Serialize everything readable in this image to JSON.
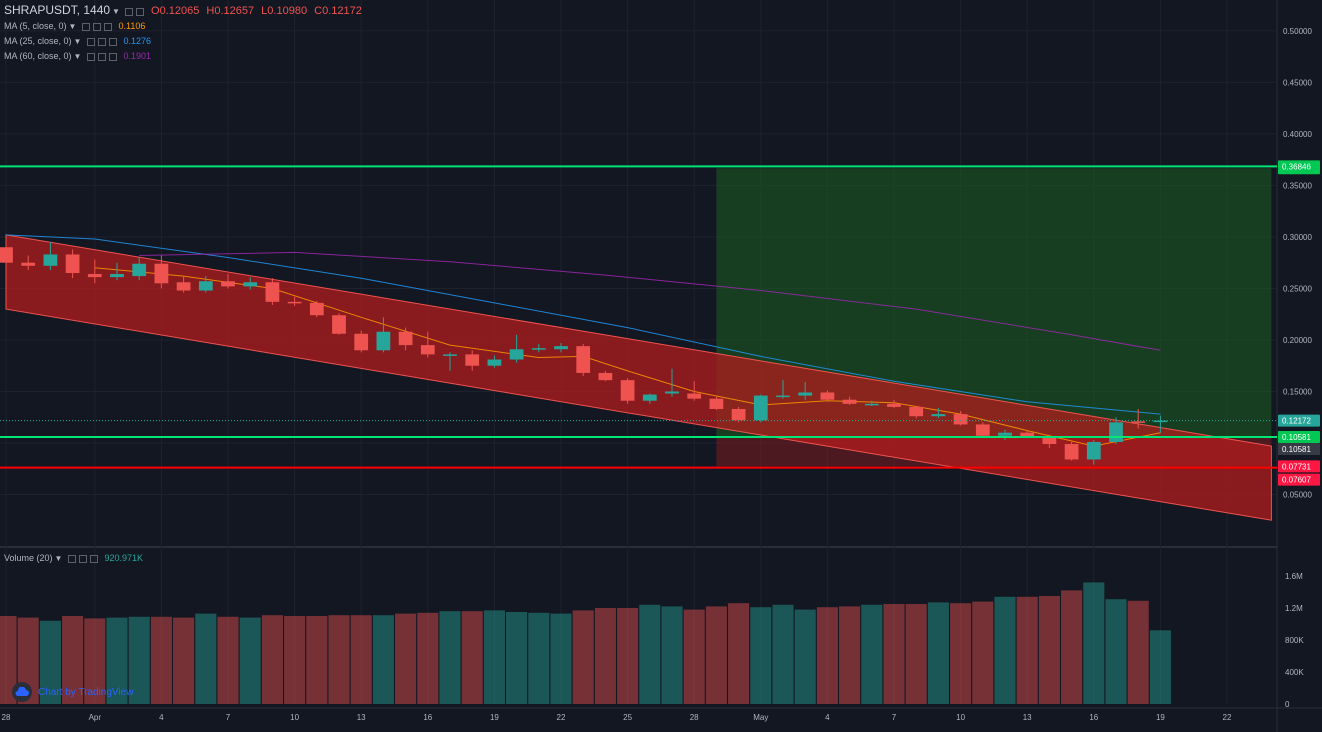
{
  "header": {
    "symbol": "SHRAPUSDT, 1440",
    "ohlc": {
      "o_label": "O",
      "o": "0.12065",
      "h_label": "H",
      "h": "0.12657",
      "l_label": "L",
      "l": "0.10980",
      "c_label": "C",
      "c": "0.12172"
    }
  },
  "indicators": [
    {
      "label": "MA (5, close, 0)",
      "value": "0.1106",
      "color": "#ff9800"
    },
    {
      "label": "MA (25, close, 0)",
      "value": "0.1276",
      "color": "#2196f3"
    },
    {
      "label": "MA (60, close, 0)",
      "value": "0.1901",
      "color": "#9c27b0"
    }
  ],
  "volume_legend": {
    "label": "Volume (20)",
    "value": "920.971K"
  },
  "branding": "Chart by TradingView",
  "colors": {
    "background": "#131722",
    "up": "#26a69a",
    "down": "#ef5350",
    "grid": "#1e222d",
    "text": "#b2b5be"
  },
  "chart_data": {
    "type": "candlestick",
    "price_axis": {
      "min": 0.0,
      "max": 0.53,
      "ticks": [
        0.05,
        0.1,
        0.15,
        0.2,
        0.25,
        0.3,
        0.35,
        0.4,
        0.45,
        0.5
      ],
      "tick_labels": [
        "0.05000",
        "0.10000",
        "0.15000",
        "0.20000",
        "0.25000",
        "0.30000",
        "0.35000",
        "0.40000",
        "0.45000",
        "0.50000"
      ]
    },
    "volume_axis": {
      "min": 0,
      "max": 1700000,
      "ticks": [
        0,
        400000,
        800000,
        1200000,
        1600000
      ],
      "tick_labels": [
        "0",
        "400K",
        "800K",
        "1.2M",
        "1.6M"
      ]
    },
    "time_axis": {
      "start_date": "2021-03-28",
      "end_date": "2021-05-24",
      "ticks": [
        {
          "date": "2021-03-28",
          "label": "28"
        },
        {
          "date": "2021-04-01",
          "label": "Apr"
        },
        {
          "date": "2021-04-04",
          "label": "4"
        },
        {
          "date": "2021-04-07",
          "label": "7"
        },
        {
          "date": "2021-04-10",
          "label": "10"
        },
        {
          "date": "2021-04-13",
          "label": "13"
        },
        {
          "date": "2021-04-16",
          "label": "16"
        },
        {
          "date": "2021-04-19",
          "label": "19"
        },
        {
          "date": "2021-04-22",
          "label": "22"
        },
        {
          "date": "2021-04-25",
          "label": "25"
        },
        {
          "date": "2021-04-28",
          "label": "28"
        },
        {
          "date": "2021-05-01",
          "label": "May"
        },
        {
          "date": "2021-05-04",
          "label": "4"
        },
        {
          "date": "2021-05-07",
          "label": "7"
        },
        {
          "date": "2021-05-10",
          "label": "10"
        },
        {
          "date": "2021-05-13",
          "label": "13"
        },
        {
          "date": "2021-05-16",
          "label": "16"
        },
        {
          "date": "2021-05-19",
          "label": "19"
        },
        {
          "date": "2021-05-22",
          "label": "22"
        }
      ]
    },
    "candles": [
      {
        "date": "2021-03-28",
        "o": 0.29,
        "h": 0.296,
        "l": 0.27,
        "c": 0.275,
        "v": 1100000
      },
      {
        "date": "2021-03-29",
        "o": 0.275,
        "h": 0.282,
        "l": 0.268,
        "c": 0.272,
        "v": 1080000
      },
      {
        "date": "2021-03-30",
        "o": 0.272,
        "h": 0.295,
        "l": 0.268,
        "c": 0.283,
        "v": 1040000
      },
      {
        "date": "2021-03-31",
        "o": 0.283,
        "h": 0.288,
        "l": 0.26,
        "c": 0.265,
        "v": 1100000
      },
      {
        "date": "2021-04-01",
        "o": 0.264,
        "h": 0.278,
        "l": 0.255,
        "c": 0.261,
        "v": 1070000
      },
      {
        "date": "2021-04-02",
        "o": 0.261,
        "h": 0.275,
        "l": 0.258,
        "c": 0.264,
        "v": 1080000
      },
      {
        "date": "2021-04-03",
        "o": 0.262,
        "h": 0.28,
        "l": 0.258,
        "c": 0.274,
        "v": 1090000
      },
      {
        "date": "2021-04-04",
        "o": 0.274,
        "h": 0.282,
        "l": 0.25,
        "c": 0.255,
        "v": 1090000
      },
      {
        "date": "2021-04-05",
        "o": 0.256,
        "h": 0.262,
        "l": 0.246,
        "c": 0.248,
        "v": 1080000
      },
      {
        "date": "2021-04-06",
        "o": 0.248,
        "h": 0.262,
        "l": 0.246,
        "c": 0.257,
        "v": 1130000
      },
      {
        "date": "2021-04-07",
        "o": 0.257,
        "h": 0.264,
        "l": 0.25,
        "c": 0.252,
        "v": 1090000
      },
      {
        "date": "2021-04-08",
        "o": 0.252,
        "h": 0.261,
        "l": 0.249,
        "c": 0.256,
        "v": 1080000
      },
      {
        "date": "2021-04-09",
        "o": 0.256,
        "h": 0.26,
        "l": 0.234,
        "c": 0.237,
        "v": 1110000
      },
      {
        "date": "2021-04-10",
        "o": 0.237,
        "h": 0.242,
        "l": 0.233,
        "c": 0.236,
        "v": 1100000
      },
      {
        "date": "2021-04-11",
        "o": 0.236,
        "h": 0.238,
        "l": 0.222,
        "c": 0.224,
        "v": 1100000
      },
      {
        "date": "2021-04-12",
        "o": 0.224,
        "h": 0.226,
        "l": 0.205,
        "c": 0.206,
        "v": 1110000
      },
      {
        "date": "2021-04-13",
        "o": 0.206,
        "h": 0.209,
        "l": 0.188,
        "c": 0.19,
        "v": 1110000
      },
      {
        "date": "2021-04-14",
        "o": 0.19,
        "h": 0.222,
        "l": 0.188,
        "c": 0.208,
        "v": 1110000
      },
      {
        "date": "2021-04-15",
        "o": 0.208,
        "h": 0.212,
        "l": 0.19,
        "c": 0.195,
        "v": 1130000
      },
      {
        "date": "2021-04-16",
        "o": 0.195,
        "h": 0.208,
        "l": 0.183,
        "c": 0.186,
        "v": 1140000
      },
      {
        "date": "2021-04-17",
        "o": 0.186,
        "h": 0.188,
        "l": 0.17,
        "c": 0.186,
        "v": 1160000
      },
      {
        "date": "2021-04-18",
        "o": 0.186,
        "h": 0.19,
        "l": 0.17,
        "c": 0.175,
        "v": 1160000
      },
      {
        "date": "2021-04-19",
        "o": 0.175,
        "h": 0.185,
        "l": 0.173,
        "c": 0.181,
        "v": 1170000
      },
      {
        "date": "2021-04-20",
        "o": 0.181,
        "h": 0.205,
        "l": 0.178,
        "c": 0.191,
        "v": 1150000
      },
      {
        "date": "2021-04-21",
        "o": 0.191,
        "h": 0.196,
        "l": 0.188,
        "c": 0.192,
        "v": 1140000
      },
      {
        "date": "2021-04-22",
        "o": 0.191,
        "h": 0.197,
        "l": 0.188,
        "c": 0.194,
        "v": 1130000
      },
      {
        "date": "2021-04-23",
        "o": 0.194,
        "h": 0.196,
        "l": 0.165,
        "c": 0.168,
        "v": 1170000
      },
      {
        "date": "2021-04-24",
        "o": 0.168,
        "h": 0.17,
        "l": 0.16,
        "c": 0.161,
        "v": 1200000
      },
      {
        "date": "2021-04-25",
        "o": 0.161,
        "h": 0.163,
        "l": 0.138,
        "c": 0.141,
        "v": 1200000
      },
      {
        "date": "2021-04-26",
        "o": 0.141,
        "h": 0.148,
        "l": 0.138,
        "c": 0.147,
        "v": 1240000
      },
      {
        "date": "2021-04-27",
        "o": 0.148,
        "h": 0.172,
        "l": 0.145,
        "c": 0.15,
        "v": 1220000
      },
      {
        "date": "2021-04-28",
        "o": 0.148,
        "h": 0.16,
        "l": 0.141,
        "c": 0.143,
        "v": 1180000
      },
      {
        "date": "2021-04-29",
        "o": 0.143,
        "h": 0.145,
        "l": 0.132,
        "c": 0.133,
        "v": 1220000
      },
      {
        "date": "2021-04-30",
        "o": 0.133,
        "h": 0.135,
        "l": 0.12,
        "c": 0.122,
        "v": 1260000
      },
      {
        "date": "2021-05-01",
        "o": 0.122,
        "h": 0.147,
        "l": 0.12,
        "c": 0.146,
        "v": 1210000
      },
      {
        "date": "2021-05-02",
        "o": 0.146,
        "h": 0.161,
        "l": 0.143,
        "c": 0.146,
        "v": 1240000
      },
      {
        "date": "2021-05-03",
        "o": 0.146,
        "h": 0.159,
        "l": 0.142,
        "c": 0.149,
        "v": 1180000
      },
      {
        "date": "2021-05-04",
        "o": 0.149,
        "h": 0.151,
        "l": 0.14,
        "c": 0.142,
        "v": 1210000
      },
      {
        "date": "2021-05-05",
        "o": 0.142,
        "h": 0.145,
        "l": 0.137,
        "c": 0.138,
        "v": 1220000
      },
      {
        "date": "2021-05-06",
        "o": 0.138,
        "h": 0.141,
        "l": 0.136,
        "c": 0.138,
        "v": 1240000
      },
      {
        "date": "2021-05-07",
        "o": 0.138,
        "h": 0.142,
        "l": 0.134,
        "c": 0.135,
        "v": 1250000
      },
      {
        "date": "2021-05-08",
        "o": 0.135,
        "h": 0.136,
        "l": 0.124,
        "c": 0.126,
        "v": 1250000
      },
      {
        "date": "2021-05-09",
        "o": 0.126,
        "h": 0.134,
        "l": 0.124,
        "c": 0.128,
        "v": 1270000
      },
      {
        "date": "2021-05-10",
        "o": 0.128,
        "h": 0.131,
        "l": 0.117,
        "c": 0.118,
        "v": 1260000
      },
      {
        "date": "2021-05-11",
        "o": 0.118,
        "h": 0.12,
        "l": 0.105,
        "c": 0.107,
        "v": 1280000
      },
      {
        "date": "2021-05-12",
        "o": 0.107,
        "h": 0.113,
        "l": 0.103,
        "c": 0.11,
        "v": 1340000
      },
      {
        "date": "2021-05-13",
        "o": 0.11,
        "h": 0.112,
        "l": 0.105,
        "c": 0.106,
        "v": 1340000
      },
      {
        "date": "2021-05-14",
        "o": 0.106,
        "h": 0.108,
        "l": 0.095,
        "c": 0.099,
        "v": 1350000
      },
      {
        "date": "2021-05-15",
        "o": 0.099,
        "h": 0.101,
        "l": 0.083,
        "c": 0.084,
        "v": 1420000
      },
      {
        "date": "2021-05-16",
        "o": 0.084,
        "h": 0.103,
        "l": 0.079,
        "c": 0.101,
        "v": 1520000
      },
      {
        "date": "2021-05-17",
        "o": 0.101,
        "h": 0.125,
        "l": 0.099,
        "c": 0.12,
        "v": 1310000
      },
      {
        "date": "2021-05-18",
        "o": 0.121,
        "h": 0.133,
        "l": 0.114,
        "c": 0.12,
        "v": 1290000
      },
      {
        "date": "2021-05-19",
        "o": 0.12065,
        "h": 0.12657,
        "l": 0.1098,
        "c": 0.12172,
        "v": 920971
      }
    ],
    "ma_lines": [
      {
        "name": "MA (5, close, 0)",
        "color": "#ff9800",
        "points": [
          [
            "2021-04-01",
            0.27
          ],
          [
            "2021-04-05",
            0.262
          ],
          [
            "2021-04-09",
            0.25
          ],
          [
            "2021-04-13",
            0.222
          ],
          [
            "2021-04-17",
            0.195
          ],
          [
            "2021-04-21",
            0.183
          ],
          [
            "2021-04-23",
            0.184
          ],
          [
            "2021-04-25",
            0.17
          ],
          [
            "2021-04-28",
            0.15
          ],
          [
            "2021-05-01",
            0.137
          ],
          [
            "2021-05-04",
            0.141
          ],
          [
            "2021-05-07",
            0.139
          ],
          [
            "2021-05-10",
            0.128
          ],
          [
            "2021-05-13",
            0.112
          ],
          [
            "2021-05-16",
            0.097
          ],
          [
            "2021-05-19",
            0.11
          ]
        ]
      },
      {
        "name": "MA (25, close, 0)",
        "color": "#2196f3",
        "points": [
          [
            "2021-03-28",
            0.302
          ],
          [
            "2021-04-01",
            0.298
          ],
          [
            "2021-04-07",
            0.28
          ],
          [
            "2021-04-13",
            0.26
          ],
          [
            "2021-04-19",
            0.236
          ],
          [
            "2021-04-25",
            0.212
          ],
          [
            "2021-05-01",
            0.184
          ],
          [
            "2021-05-07",
            0.16
          ],
          [
            "2021-05-13",
            0.14
          ],
          [
            "2021-05-19",
            0.128
          ]
        ]
      },
      {
        "name": "MA (60, close, 0)",
        "color": "#9c27b0",
        "points": [
          [
            "2021-04-03",
            0.282
          ],
          [
            "2021-04-10",
            0.285
          ],
          [
            "2021-04-17",
            0.276
          ],
          [
            "2021-04-24",
            0.263
          ],
          [
            "2021-05-01",
            0.248
          ],
          [
            "2021-05-08",
            0.23
          ],
          [
            "2021-05-15",
            0.205
          ],
          [
            "2021-05-19",
            0.19
          ]
        ]
      }
    ],
    "channel": {
      "upper": [
        [
          "2021-03-28",
          0.302
        ],
        [
          "2021-05-24",
          0.097
        ]
      ],
      "lower": [
        [
          "2021-03-28",
          0.23
        ],
        [
          "2021-05-24",
          0.025
        ]
      ]
    },
    "position": {
      "start": "2021-04-29",
      "end": "2021-05-24",
      "target": 0.36671,
      "entry": 0.10581,
      "stop": 0.07731
    },
    "horizontal_lines": [
      {
        "price": 0.36846,
        "color": "#00e676"
      },
      {
        "price": 0.10581,
        "color": "#00e676"
      },
      {
        "price": 0.07607,
        "color": "#ff0000"
      }
    ],
    "price_labels": [
      {
        "price": 0.36671,
        "text": "0.36671",
        "color": "#00c853"
      },
      {
        "price": 0.36846,
        "text": "0.36846",
        "color": "#00c853"
      },
      {
        "price": 0.12172,
        "text": "0.12172",
        "color": "#26a69a"
      },
      {
        "price": 0.10581,
        "text": "0.10581",
        "color": "#00c853"
      },
      {
        "price": 0.10581,
        "text": "0.10581",
        "color": "#363a45",
        "offset": 1
      },
      {
        "price": 0.07731,
        "text": "0.07731",
        "color": "#ff1744"
      },
      {
        "price": 0.07607,
        "text": "0.07607",
        "color": "#ff1744",
        "offset": 1
      }
    ]
  }
}
